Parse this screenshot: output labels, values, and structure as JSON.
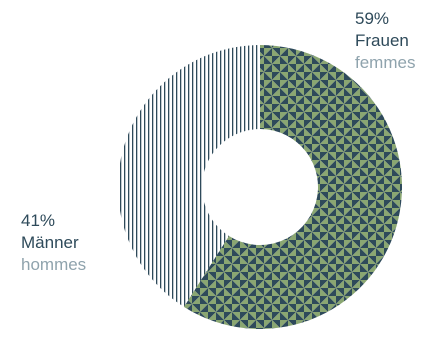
{
  "chart_data": {
    "type": "pie",
    "donut": true,
    "slices": [
      {
        "key": "women",
        "value": 59,
        "percent_label": "59%",
        "label_de": "Frauen",
        "label_fr": "femmes",
        "pattern": "triangles",
        "colors": [
          "#2e4a5a",
          "#8aa672"
        ]
      },
      {
        "key": "men",
        "value": 41,
        "percent_label": "41%",
        "label_de": "Männer",
        "label_fr": "hommes",
        "pattern": "vertical-stripes",
        "colors": [
          "#2e4a5a"
        ]
      }
    ]
  },
  "colors": {
    "text_dark": "#2e4a5a",
    "text_light": "#8fa3ad"
  }
}
